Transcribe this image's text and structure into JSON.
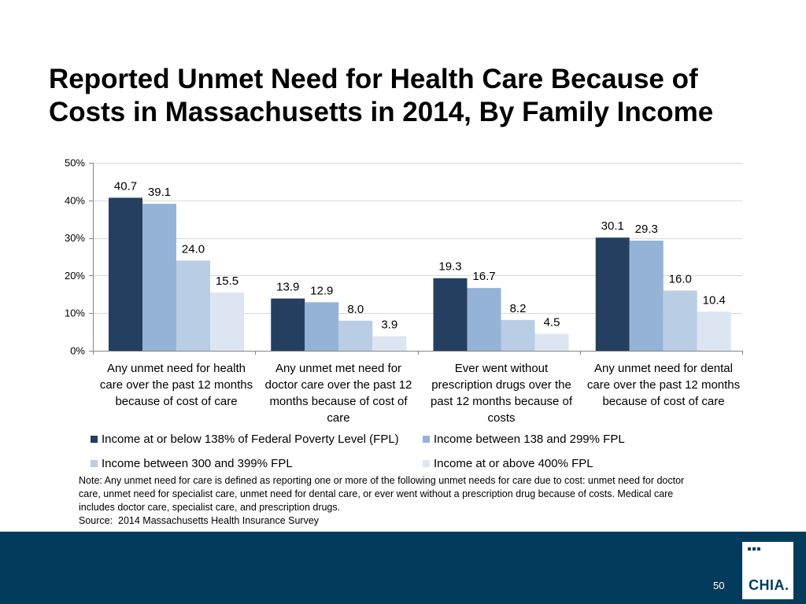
{
  "chart_data": {
    "type": "bar",
    "title": "Reported Unmet Need for Health Care Because of Costs in Massachusetts in 2014, By Family Income",
    "categories": [
      "Any unmet need for health care over the past 12 months because of cost of care",
      "Any unmet met need for doctor care over the past 12 months because of cost of care",
      "Ever went without prescription drugs over the past 12 months because of costs",
      "Any unmet need for dental care over the past 12 months because of cost of care"
    ],
    "series": [
      {
        "name": "Income at or below 138% of Federal Poverty Level (FPL)",
        "color": "#243F60",
        "values": [
          40.7,
          13.9,
          19.3,
          30.1
        ]
      },
      {
        "name": "Income between 138 and 299% FPL",
        "color": "#95B3D7",
        "values": [
          39.1,
          12.9,
          16.7,
          29.3
        ]
      },
      {
        "name": "Income between 300 and 399% FPL",
        "color": "#B9CDE5",
        "values": [
          24.0,
          8.0,
          8.2,
          16.0
        ]
      },
      {
        "name": "Income at or above 400% FPL",
        "color": "#DCE6F2",
        "values": [
          15.5,
          3.9,
          4.5,
          10.4
        ]
      }
    ],
    "yticks": [
      0,
      10,
      20,
      30,
      40,
      50
    ],
    "ytick_labels": [
      "0%",
      "10%",
      "20%",
      "30%",
      "40%",
      "50%"
    ],
    "ylim": [
      0,
      50
    ],
    "grid": true,
    "legend": "bottom"
  },
  "notes": {
    "lines": [
      "Note: Any unmet need for care is defined as reporting one or more of the following unmet needs for care due to cost: unmet need for doctor",
      "care, unmet need for specialist care, unmet need for dental care, or ever went without a prescription drug because of costs. Medical care",
      "includes doctor care, specialist care, and prescription drugs."
    ],
    "source": "Source:  2014 Massachusetts Health Insurance Survey"
  },
  "slide": {
    "page_number": "50",
    "logo_text": "CHIA."
  },
  "theme": {
    "brand": "#023B5C",
    "gridline": "#D9D9D9",
    "axis": "#868686"
  }
}
